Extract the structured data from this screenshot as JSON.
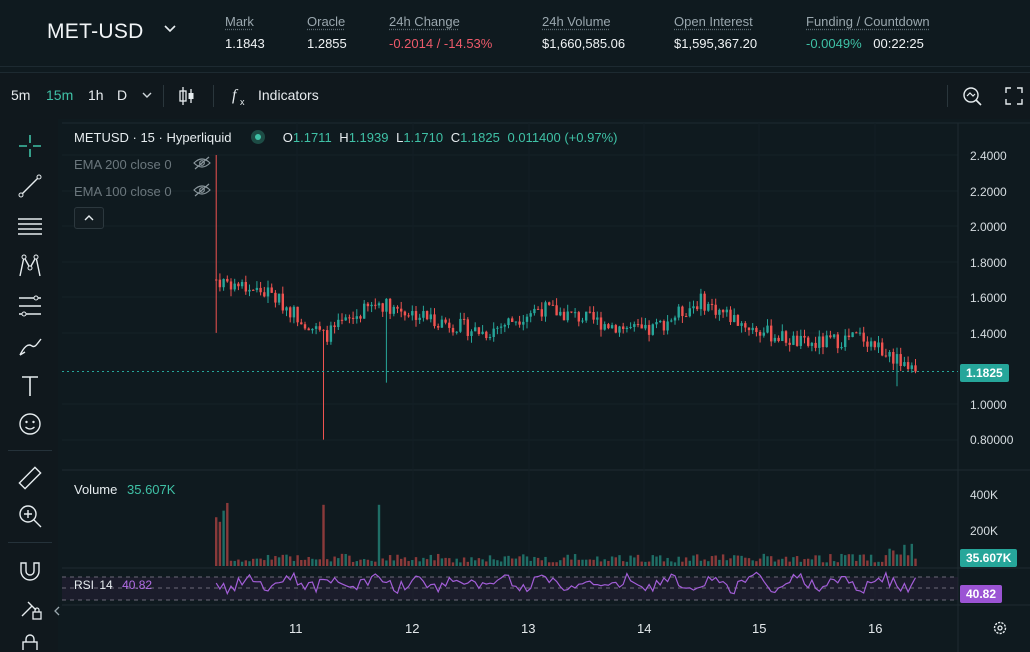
{
  "market": {
    "symbol": "MET-USD",
    "stats": [
      {
        "label": "Mark",
        "value": "1.1843",
        "tone": "neutral"
      },
      {
        "label": "Oracle",
        "value": "1.2855",
        "tone": "neutral"
      },
      {
        "label": "24h Change",
        "value": "-0.2014 / -14.53%",
        "tone": "neg"
      },
      {
        "label": "24h Volume",
        "value": "$1,660,585.06",
        "tone": "neutral"
      },
      {
        "label": "Open Interest",
        "value": "$1,595,367.20",
        "tone": "neutral"
      },
      {
        "label": "Funding / Countdown",
        "value": "-0.0049%",
        "value2": "00:22:25",
        "tone": "pos"
      }
    ]
  },
  "toolbar": {
    "intervals": [
      "5m",
      "15m",
      "1h",
      "D"
    ],
    "active_interval": "15m",
    "indicators_label": "Indicators"
  },
  "chart": {
    "legend": {
      "title": "METUSD · 15 · Hyperliquid",
      "o_label": "O",
      "o": "1.1711",
      "h_label": "H",
      "h": "1.1939",
      "l_label": "L",
      "l": "1.1710",
      "c_label": "C",
      "c": "1.1825",
      "change": "0.011400 (+0.97%)"
    },
    "indicators": [
      "EMA 200 close 0",
      "EMA 100 close 0"
    ],
    "price_ticks": [
      "2.4000",
      "2.2000",
      "2.0000",
      "1.8000",
      "1.6000",
      "1.4000",
      "1.0000",
      "0.80000"
    ],
    "last_price": "1.1825",
    "volume_label": "Volume",
    "volume_value": "35.607K",
    "volume_ticks": [
      "400K",
      "200K"
    ],
    "rsi_label": "RSI",
    "rsi_period": "14",
    "rsi_value": "40.82",
    "dates": [
      "11",
      "12",
      "13",
      "14",
      "15",
      "16"
    ],
    "colors": {
      "up": "#26a69a",
      "down": "#ef5350",
      "rsi": "#a35ed8"
    }
  },
  "chart_data": {
    "type": "candlestick",
    "x": [
      "10",
      "10.5",
      "11",
      "11.5",
      "12",
      "12.5",
      "13",
      "13.5",
      "14",
      "14.5",
      "15",
      "15.5",
      "16",
      "16.3"
    ],
    "close": [
      1.7,
      1.62,
      1.38,
      1.57,
      1.48,
      1.4,
      1.54,
      1.47,
      1.4,
      1.58,
      1.42,
      1.33,
      1.38,
      1.18
    ],
    "high_max": 2.4,
    "low_min": 0.8,
    "ylim": [
      0.78,
      2.45
    ],
    "last": 1.1825
  }
}
